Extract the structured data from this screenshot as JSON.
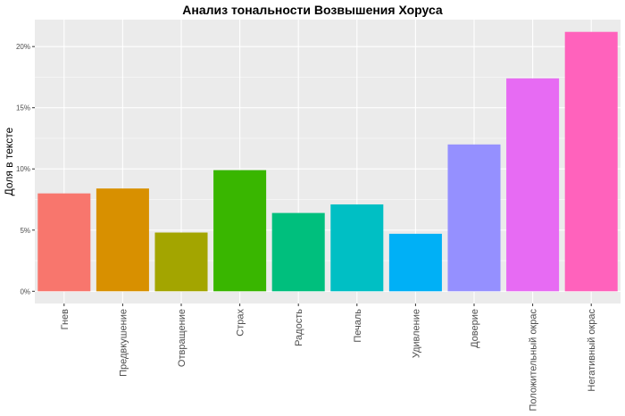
{
  "chart_data": {
    "type": "bar",
    "title": "Анализ тональности Возвышения Хоруса",
    "xlabel": "",
    "ylabel": "Доля в тексте",
    "categories": [
      "Гнев",
      "Предвкушение",
      "Отвращение",
      "Страх",
      "Радость",
      "Печаль",
      "Удивление",
      "Доверие",
      "Положительный окрас",
      "Негативный окрас"
    ],
    "values": [
      8.0,
      8.4,
      4.8,
      9.9,
      6.4,
      7.1,
      4.7,
      12.0,
      17.4,
      21.2
    ],
    "colors": [
      "#F8766D",
      "#D89000",
      "#A3A500",
      "#39B600",
      "#00BF7D",
      "#00BFC4",
      "#00B0F6",
      "#9590FF",
      "#E76BF3",
      "#FF62BC"
    ],
    "ylim": [
      -1,
      22.2
    ],
    "yticks": [
      0,
      5,
      10,
      15,
      20
    ],
    "ytick_labels": [
      "0%",
      "5%",
      "10%",
      "15%",
      "20%"
    ],
    "grid": true,
    "legend": "none",
    "panel_background": "#EBEBEB",
    "grid_color": "#FFFFFF"
  }
}
